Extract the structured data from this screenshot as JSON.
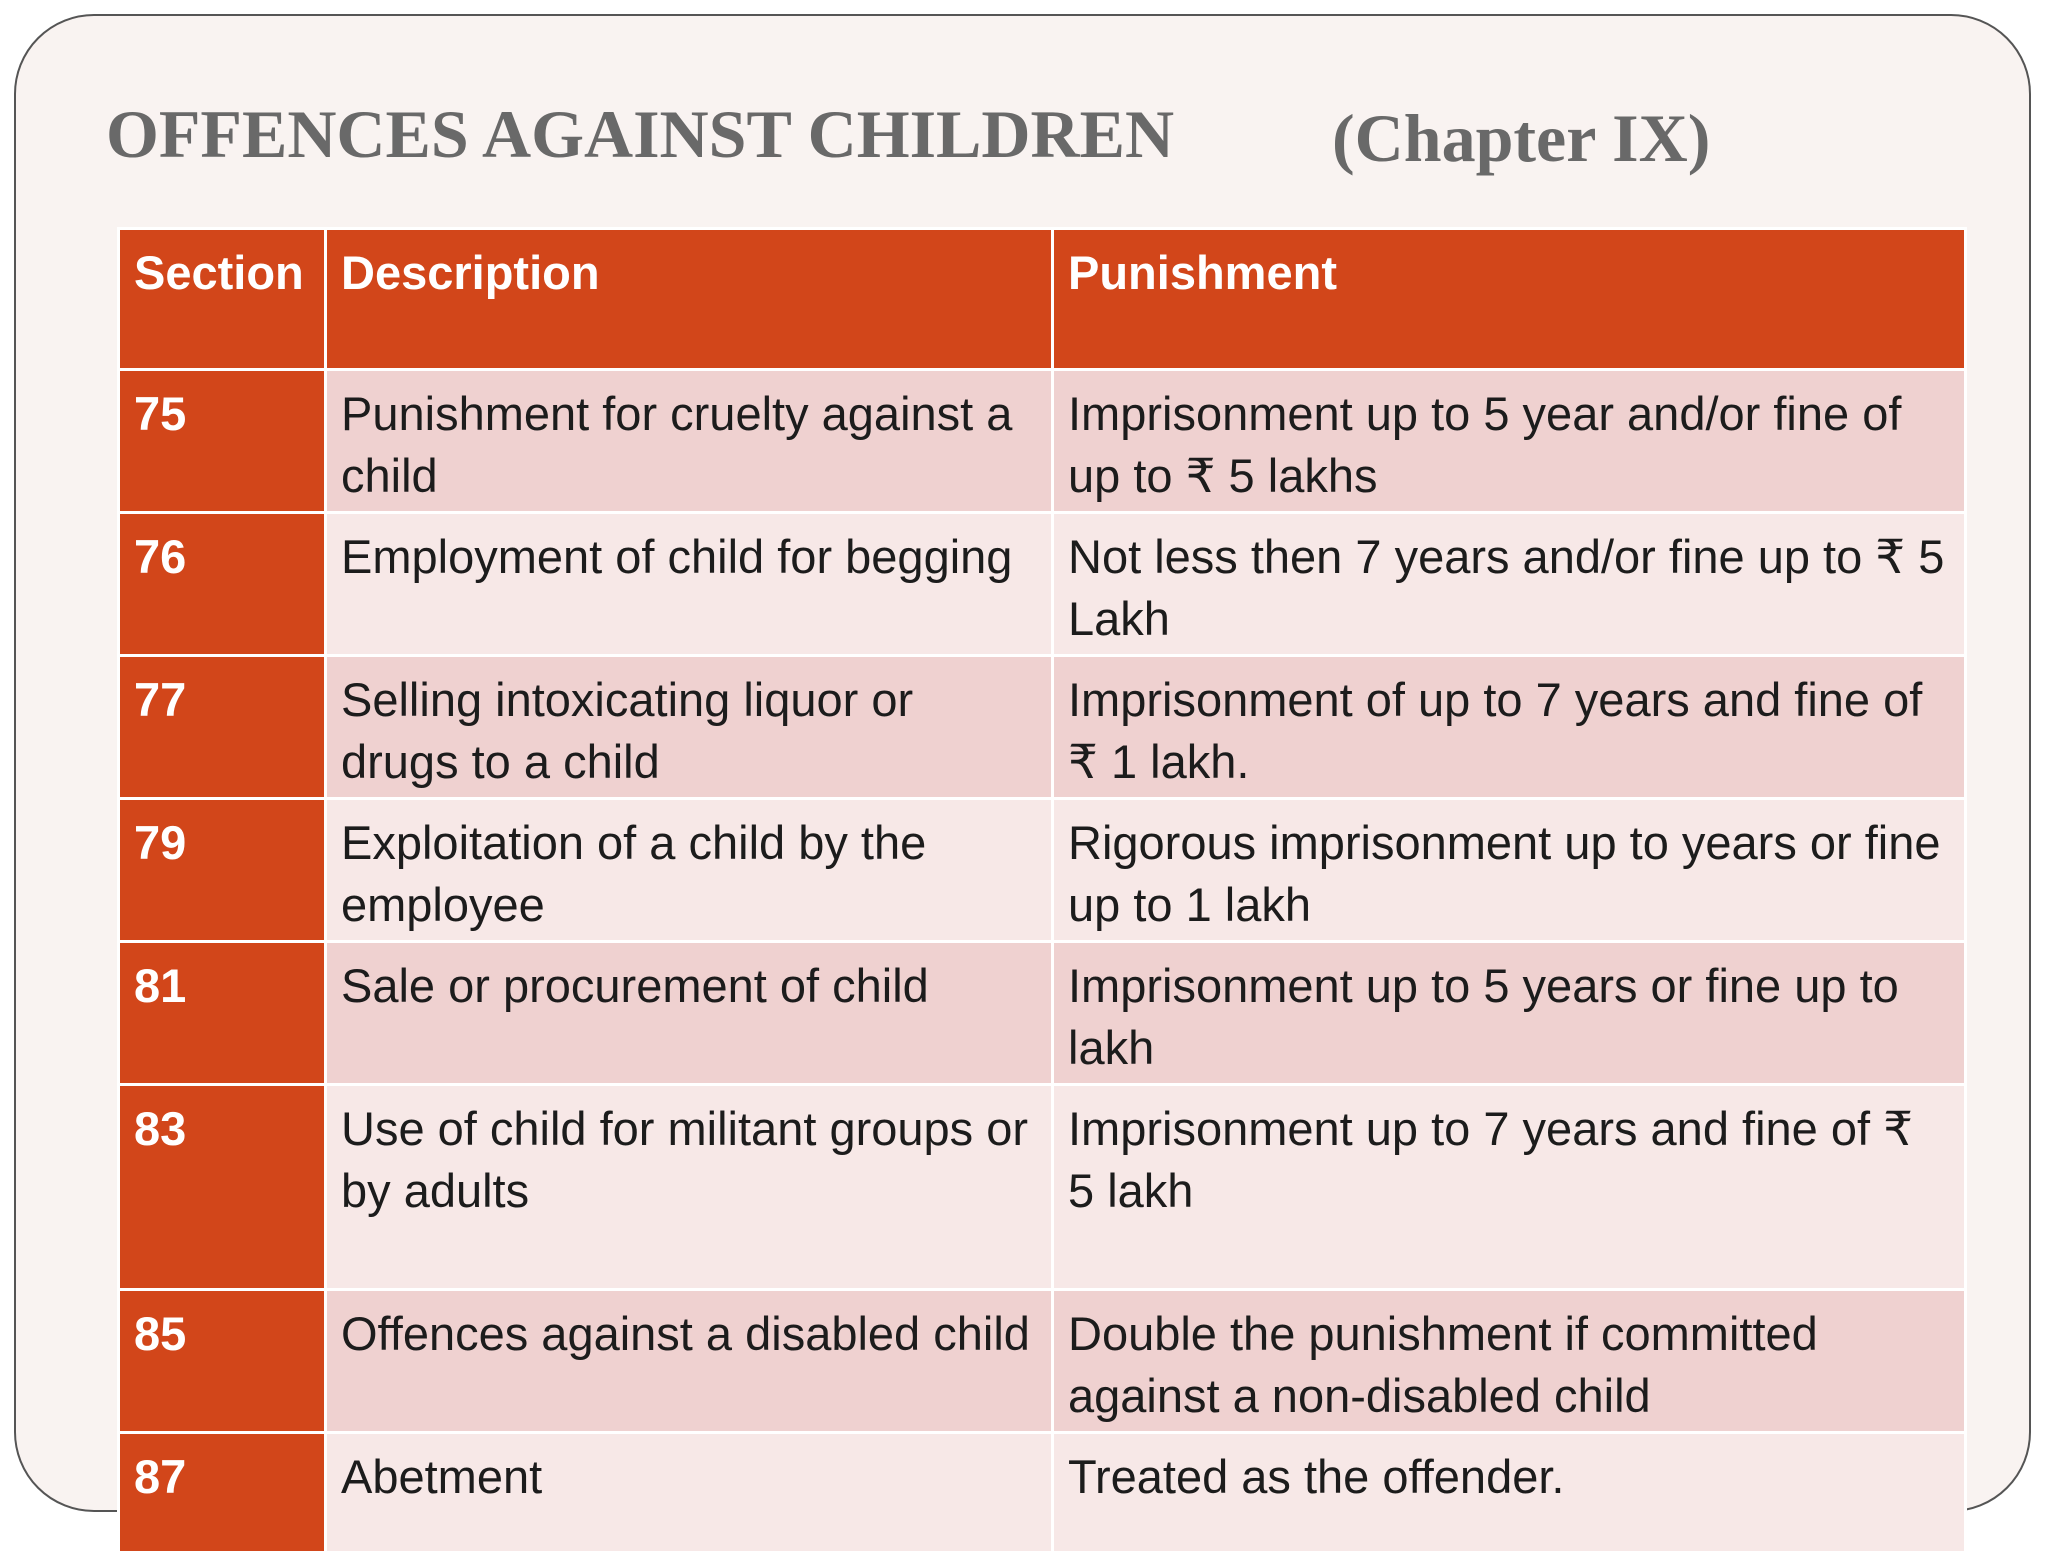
{
  "title": "OFFENCES AGAINST CHILDREN",
  "subtitle": "(Chapter IX)",
  "table": {
    "headers": [
      "Section",
      "Description",
      "Punishment"
    ],
    "rows": [
      {
        "section": "75",
        "description": "Punishment for cruelty against a child",
        "punishment": "Imprisonment up to 5 year and/or fine of up to ₹ 5 lakhs"
      },
      {
        "section": "76",
        "description": "Employment of child for begging",
        "punishment": "Not less then 7 years and/or fine up to ₹ 5 Lakh"
      },
      {
        "section": "77",
        "description": "Selling intoxicating liquor or drugs to a child",
        "punishment": "Imprisonment of up to 7 years and fine of ₹ 1 lakh."
      },
      {
        "section": "79",
        "description": "Exploitation of a child by the employee",
        "punishment": "Rigorous imprisonment up to  years or fine up to 1 lakh"
      },
      {
        "section": "81",
        "description": "Sale or procurement of child",
        "punishment": "Imprisonment up to 5 years or fine up to lakh"
      },
      {
        "section": "83",
        "description": "Use of child for militant groups or by adults",
        "punishment": "Imprisonment up to 7 years and fine of ₹ 5 lakh"
      },
      {
        "section": "85",
        "description": "Offences against a disabled child",
        "punishment": "Double the punishment if committed against a non-disabled child"
      },
      {
        "section": "87",
        "description": "Abetment",
        "punishment": "Treated as the offender."
      }
    ]
  },
  "colors": {
    "header_and_section": "#d2461a",
    "row_odd": "#efd1d0",
    "row_even": "#f7e8e7",
    "title": "#696969"
  }
}
